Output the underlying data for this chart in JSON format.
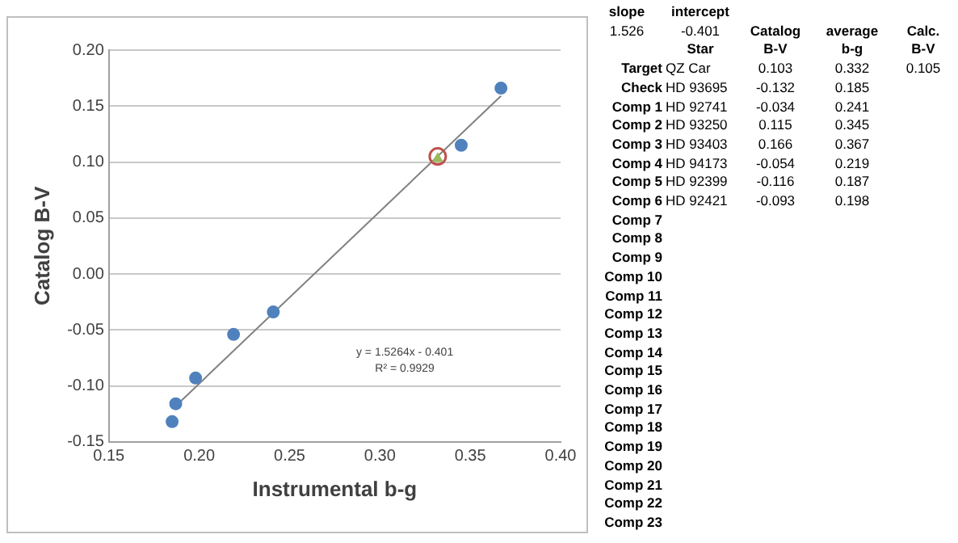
{
  "chart_data": [
    {
      "type": "scatter",
      "xlabel": "Instrumental b-g",
      "ylabel": "Catalog B-V",
      "series": [
        {
          "type": "scatter",
          "color": "#4f81bd",
          "marker": "circle",
          "x": [
            0.185,
            0.187,
            0.198,
            0.219,
            0.241,
            0.345,
            0.367
          ],
          "values": [
            -0.132,
            -0.116,
            -0.093,
            -0.054,
            -0.034,
            0.115,
            0.166
          ]
        },
        {
          "type": "scatter",
          "color": "#c0504d",
          "marker": "circle",
          "x": [
            0.332
          ],
          "values": [
            0.105
          ]
        },
        {
          "type": "scatter",
          "color": "#9bbb59",
          "marker": "triangle",
          "x": [
            0.332
          ],
          "values": [
            0.103
          ]
        },
        {
          "type": "line",
          "color": "#808080",
          "marker": "none",
          "x": [
            0.187,
            0.367
          ],
          "values": [
            -0.118,
            0.159
          ]
        }
      ],
      "xlim": [
        0.15,
        0.4
      ],
      "xticks": [
        {
          "value": 0.15,
          "label": "0.15"
        },
        {
          "value": 0.2,
          "label": "0.20"
        },
        {
          "value": 0.25,
          "label": "0.25"
        },
        {
          "value": 0.3,
          "label": "0.30"
        },
        {
          "value": 0.35,
          "label": "0.35"
        },
        {
          "value": 0.4,
          "label": "0.40"
        }
      ],
      "ylim": [
        -0.15,
        0.2
      ],
      "yticks": [
        {
          "value": -0.15,
          "label": "-0.15"
        },
        {
          "value": -0.1,
          "label": "-0.10"
        },
        {
          "value": -0.05,
          "label": "-0.05"
        },
        {
          "value": 0,
          "label": "0.00"
        },
        {
          "value": 0.05,
          "label": "0.05"
        },
        {
          "value": 0.1,
          "label": "0.10"
        },
        {
          "value": 0.15,
          "label": "0.15"
        },
        {
          "value": 0.2,
          "label": "0.20"
        }
      ],
      "grid": "y",
      "legend": false,
      "annotations": [
        "y = 1.5264x - 0.401",
        "R² = 0.9929"
      ]
    },
    {
      "type": "other",
      "annotations": [
        "slope",
        "intercept",
        "1.526",
        "-0.401"
      ],
      "categories": [
        "Star",
        "Catalog B-V",
        "average b-g",
        "Calc. B-V"
      ],
      "y_categories": [
        "Target",
        "Check",
        "Comp 1",
        "Comp 2",
        "Comp 3",
        "Comp 4",
        "Comp 5",
        "Comp 6",
        "Comp 7",
        "Comp 8",
        "Comp 9",
        "Comp 10",
        "Comp 11",
        "Comp 12",
        "Comp 13",
        "Comp 14",
        "Comp 15",
        "Comp 16",
        "Comp 17",
        "Comp 18",
        "Comp 19",
        "Comp 20",
        "Comp 21",
        "Comp 22",
        "Comp 23"
      ],
      "cell_labels": [
        [
          "QZ Car",
          "0.103",
          "0.332",
          "0.105"
        ],
        [
          "HD 93695",
          "-0.132",
          "0.185",
          null
        ],
        [
          "HD 92741",
          "-0.034",
          "0.241",
          null
        ],
        [
          "HD 93250",
          "0.115",
          "0.345",
          null
        ],
        [
          "HD 93403",
          "0.166",
          "0.367",
          null
        ],
        [
          "HD 94173",
          "-0.054",
          "0.219",
          null
        ],
        [
          "HD 92399",
          "-0.116",
          "0.187",
          null
        ],
        [
          "HD 92421",
          "-0.093",
          "0.198",
          null
        ],
        [
          null,
          null,
          null,
          null
        ],
        [
          null,
          null,
          null,
          null
        ],
        [
          null,
          null,
          null,
          null
        ],
        [
          null,
          null,
          null,
          null
        ],
        [
          null,
          null,
          null,
          null
        ],
        [
          null,
          null,
          null,
          null
        ],
        [
          null,
          null,
          null,
          null
        ],
        [
          null,
          null,
          null,
          null
        ],
        [
          null,
          null,
          null,
          null
        ],
        [
          null,
          null,
          null,
          null
        ],
        [
          null,
          null,
          null,
          null
        ],
        [
          null,
          null,
          null,
          null
        ],
        [
          null,
          null,
          null,
          null
        ],
        [
          null,
          null,
          null,
          null
        ],
        [
          null,
          null,
          null,
          null
        ],
        [
          null,
          null,
          null,
          null
        ],
        [
          null,
          null,
          null,
          null
        ]
      ]
    }
  ]
}
